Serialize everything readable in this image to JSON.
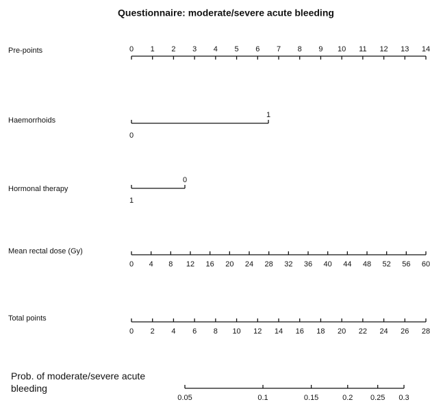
{
  "chart_data": {
    "type": "nomogram",
    "title": "Questionnaire: moderate/severe acute bleeding",
    "axes": [
      {
        "label": "Pre-points",
        "xlim": [
          0,
          14
        ],
        "ticks": [
          0,
          1,
          2,
          3,
          4,
          5,
          6,
          7,
          8,
          9,
          10,
          11,
          12,
          13,
          14
        ]
      },
      {
        "label": "Haemorrhoids",
        "xlim": [
          0,
          1
        ],
        "ticks": [
          0,
          1
        ]
      },
      {
        "label": "Hormonal therapy",
        "xlim": [
          1,
          0
        ],
        "ticks": [
          0,
          1
        ]
      },
      {
        "label": "Mean rectal dose (Gy)",
        "xlim": [
          0,
          60
        ],
        "ticks": [
          0,
          4,
          8,
          12,
          16,
          20,
          24,
          28,
          32,
          36,
          40,
          44,
          48,
          52,
          56,
          60
        ]
      },
      {
        "label": "Total points",
        "xlim": [
          0,
          28
        ],
        "ticks": [
          0,
          2,
          4,
          6,
          8,
          10,
          12,
          14,
          16,
          18,
          20,
          22,
          24,
          26,
          28
        ]
      },
      {
        "label": "Prob. of moderate/severe acute bleeding",
        "xlim": [
          0.05,
          0.3
        ],
        "scale": "logit",
        "ticks": [
          0.05,
          0.1,
          0.15,
          0.2,
          0.25,
          0.3
        ]
      }
    ]
  }
}
